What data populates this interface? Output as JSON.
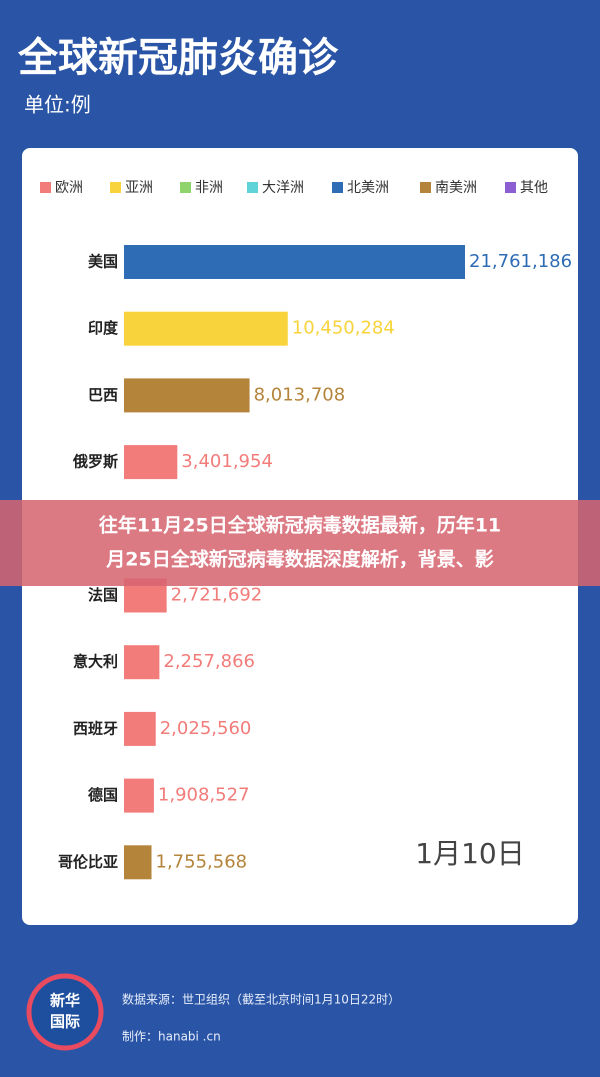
{
  "header": {
    "title": "全球新冠肺炎确诊",
    "subtitle": "单位:例"
  },
  "chart_data": {
    "type": "bar",
    "orientation": "horizontal",
    "legend": [
      {
        "name": "欧洲",
        "color": "#f27c7a"
      },
      {
        "name": "亚洲",
        "color": "#f8d33b"
      },
      {
        "name": "非洲",
        "color": "#8fd36c"
      },
      {
        "name": "大洋洲",
        "color": "#5fd3d8"
      },
      {
        "name": "北美洲",
        "color": "#2f6cb6"
      },
      {
        "name": "南美洲",
        "color": "#b5843b"
      },
      {
        "name": "其他",
        "color": "#8b5fd1"
      }
    ],
    "categories": [
      "美国",
      "印度",
      "巴西",
      "俄罗斯",
      null,
      "法国",
      "意大利",
      "西班牙",
      "德国",
      "哥伦比亚"
    ],
    "values": [
      21761186,
      10450284,
      8013708,
      3401954,
      null,
      2721692,
      2257866,
      2025560,
      1908527,
      1755568
    ],
    "value_labels": [
      "21,761,186",
      "10,450,284",
      "8,013,708",
      "3,401,954",
      null,
      "2,721,692",
      "2,257,866",
      "2,025,560",
      "1,908,527",
      "1,755,568"
    ],
    "colors": [
      "#2f6cb6",
      "#f8d33b",
      "#b5843b",
      "#f27c7a",
      null,
      "#f27c7a",
      "#f27c7a",
      "#f27c7a",
      "#f27c7a",
      "#b5843b"
    ],
    "annotation": "1月10日"
  },
  "banner": {
    "lines": [
      "往年11月25日全球新冠病毒数据最新，历年11",
      "月25日全球新冠病毒数据深度解析，背景、影"
    ]
  },
  "footer": {
    "logo": [
      "新华",
      "国际"
    ],
    "source": "数据来源：世卫组织（截至北京时间1月10日22时）",
    "credit": "制作：hanabi .cn"
  }
}
